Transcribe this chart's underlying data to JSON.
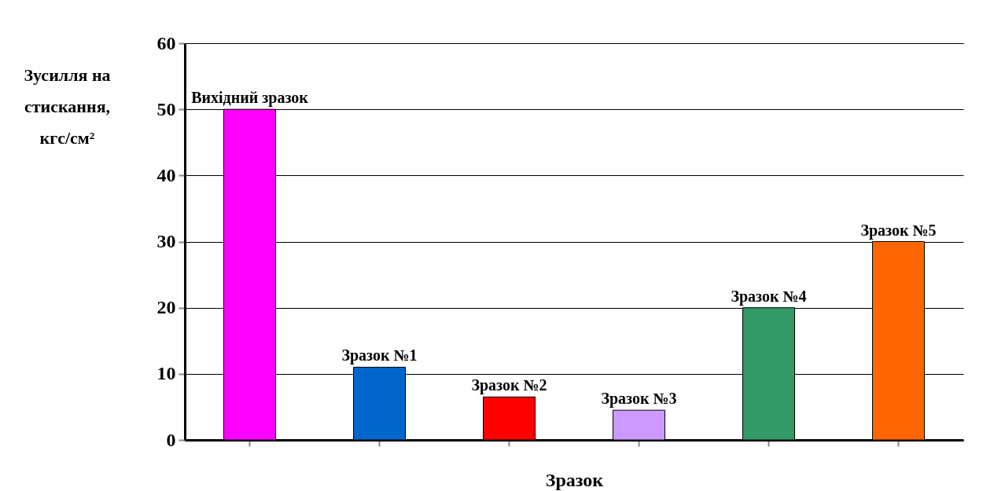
{
  "chart_data": {
    "type": "bar",
    "xlabel": "Зразок",
    "ylabel": "Зусилля на стискання, кгс/см²",
    "categories": [
      "Вихідний зразок",
      "Зразок №1",
      "Зразок №2",
      "Зразок №3",
      "Зразок №4",
      "Зразок №5"
    ],
    "values": [
      50,
      11,
      6.5,
      4.5,
      20,
      30
    ],
    "colors": [
      "#ff00ff",
      "#0066cc",
      "#ff0000",
      "#cc99ff",
      "#339966",
      "#ff6600"
    ],
    "ylim": [
      0,
      60
    ],
    "yticks": [
      0,
      10,
      20,
      30,
      40,
      50,
      60
    ],
    "grid": "y"
  }
}
